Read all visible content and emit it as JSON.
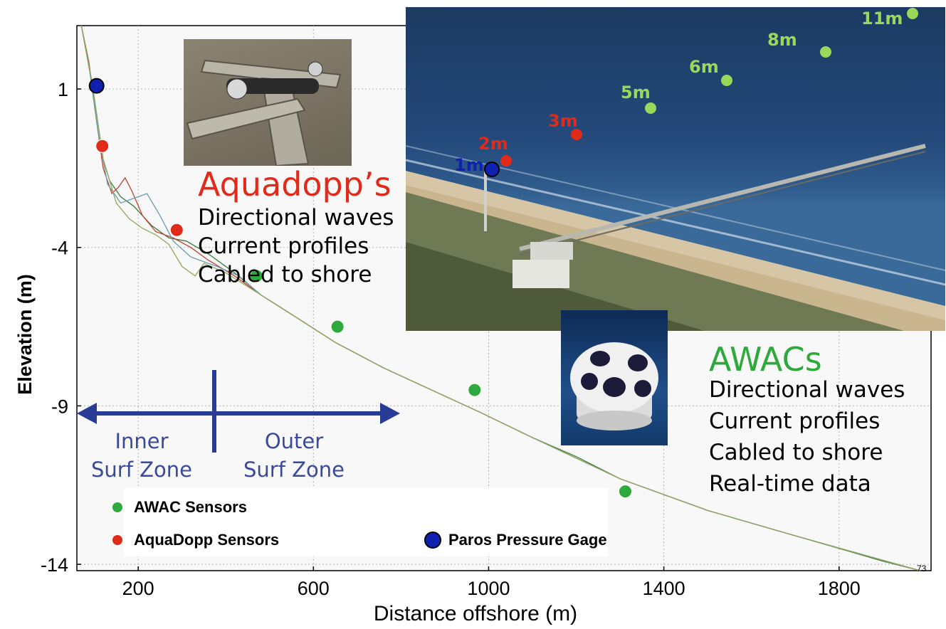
{
  "colors": {
    "awac": "#2eaa3c",
    "aquadopp": "#e02a1a",
    "paros": "#1020b0",
    "arrow": "#283c96",
    "zone_text": "#3a4a9a",
    "photo_label_green": "#9ad85a",
    "photo_label_red": "#e02a1a",
    "photo_label_blue": "#1020b0"
  },
  "chart_data": {
    "type": "line",
    "xlabel": "Distance offshore (m)",
    "ylabel": "Elevation (m)",
    "xlim": [
      60,
      2010
    ],
    "ylim": [
      -14.2,
      3
    ],
    "x_ticks": [
      200,
      600,
      1000,
      1400,
      1800
    ],
    "y_ticks": [
      1,
      -4,
      -9,
      -14
    ],
    "grid": true,
    "corner_label": "73",
    "series": [
      {
        "color": "#3c7c3c",
        "points": [
          [
            70,
            3.0
          ],
          [
            85,
            2.0
          ],
          [
            100,
            0.5
          ],
          [
            115,
            -1.0
          ],
          [
            135,
            -1.9
          ],
          [
            160,
            -2.4
          ],
          [
            190,
            -2.7
          ],
          [
            230,
            -3.3
          ],
          [
            270,
            -3.7
          ],
          [
            310,
            -3.8
          ],
          [
            360,
            -4.2
          ],
          [
            420,
            -4.8
          ],
          [
            480,
            -5.5
          ],
          [
            560,
            -6.2
          ],
          [
            650,
            -7.0
          ],
          [
            760,
            -7.8
          ],
          [
            870,
            -8.5
          ],
          [
            980,
            -9.2
          ],
          [
            1100,
            -10.0
          ],
          [
            1200,
            -10.6
          ],
          [
            1300,
            -11.3
          ],
          [
            1400,
            -11.8
          ],
          [
            1500,
            -12.3
          ],
          [
            1600,
            -12.7
          ],
          [
            1700,
            -13.1
          ],
          [
            1800,
            -13.5
          ],
          [
            1900,
            -13.9
          ],
          [
            1985,
            -14.2
          ]
        ]
      },
      {
        "color": "#c04030",
        "points": [
          [
            70,
            3.0
          ],
          [
            88,
            1.8
          ],
          [
            105,
            0.0
          ],
          [
            120,
            -1.5
          ],
          [
            140,
            -2.3
          ],
          [
            155,
            -2.1
          ],
          [
            170,
            -1.8
          ],
          [
            185,
            -2.2
          ],
          [
            210,
            -3.0
          ],
          [
            240,
            -3.5
          ],
          [
            280,
            -3.7
          ],
          [
            320,
            -4.0
          ],
          [
            360,
            -4.4
          ],
          [
            420,
            -4.9
          ],
          [
            480,
            -5.5
          ],
          [
            560,
            -6.2
          ],
          [
            650,
            -7.0
          ],
          [
            760,
            -7.8
          ],
          [
            870,
            -8.5
          ],
          [
            980,
            -9.2
          ],
          [
            1100,
            -10.0
          ],
          [
            1300,
            -11.3
          ],
          [
            1500,
            -12.3
          ],
          [
            1700,
            -13.1
          ],
          [
            1985,
            -14.2
          ]
        ]
      },
      {
        "color": "#6a9ab0",
        "points": [
          [
            70,
            3.0
          ],
          [
            90,
            1.5
          ],
          [
            110,
            -0.5
          ],
          [
            130,
            -2.0
          ],
          [
            160,
            -2.6
          ],
          [
            200,
            -2.4
          ],
          [
            220,
            -2.3
          ],
          [
            250,
            -3.0
          ],
          [
            280,
            -3.8
          ],
          [
            320,
            -4.3
          ],
          [
            380,
            -4.6
          ],
          [
            430,
            -4.9
          ],
          [
            480,
            -5.5
          ],
          [
            560,
            -6.2
          ],
          [
            650,
            -7.0
          ],
          [
            760,
            -7.8
          ],
          [
            870,
            -8.5
          ],
          [
            980,
            -9.2
          ],
          [
            1100,
            -10.0
          ],
          [
            1300,
            -11.3
          ],
          [
            1500,
            -12.3
          ],
          [
            1700,
            -13.1
          ],
          [
            1985,
            -14.2
          ]
        ]
      },
      {
        "color": "#90a860",
        "points": [
          [
            70,
            3.0
          ],
          [
            95,
            1.2
          ],
          [
            120,
            -1.2
          ],
          [
            150,
            -2.6
          ],
          [
            180,
            -3.1
          ],
          [
            210,
            -3.4
          ],
          [
            240,
            -3.6
          ],
          [
            270,
            -3.9
          ],
          [
            300,
            -4.6
          ],
          [
            330,
            -4.9
          ],
          [
            350,
            -4.5
          ],
          [
            400,
            -4.8
          ],
          [
            480,
            -5.5
          ],
          [
            560,
            -6.2
          ],
          [
            650,
            -7.0
          ],
          [
            760,
            -7.8
          ],
          [
            870,
            -8.5
          ],
          [
            980,
            -9.2
          ],
          [
            1100,
            -10.0
          ],
          [
            1300,
            -11.3
          ],
          [
            1500,
            -12.3
          ],
          [
            1700,
            -13.1
          ],
          [
            1985,
            -14.2
          ]
        ]
      }
    ],
    "sensors": [
      {
        "kind": "paros",
        "x": 105,
        "y": 1.1
      },
      {
        "kind": "aquadopp",
        "x": 118,
        "y": -0.8
      },
      {
        "kind": "aquadopp",
        "x": 288,
        "y": -3.45
      },
      {
        "kind": "awac",
        "x": 470,
        "y": -4.9
      },
      {
        "kind": "awac",
        "x": 655,
        "y": -6.5
      },
      {
        "kind": "awac",
        "x": 968,
        "y": -8.5
      },
      {
        "kind": "awac",
        "x": 1312,
        "y": -11.7
      }
    ]
  },
  "zones": {
    "inner_line1": "Inner",
    "inner_line2": "Surf Zone",
    "outer_line1": "Outer",
    "outer_line2": "Surf Zone"
  },
  "aquadopp_panel": {
    "title": "Aquadopp’s",
    "features": [
      "Directional waves",
      "Current profiles",
      "Cabled to shore"
    ]
  },
  "awac_panel": {
    "title": "AWACs",
    "features": [
      "Directional waves",
      "Current profiles",
      "Cabled to shore",
      "Real-time data"
    ]
  },
  "photo_labels": [
    {
      "text": "11m",
      "kind": "green"
    },
    {
      "text": "8m",
      "kind": "green"
    },
    {
      "text": "6m",
      "kind": "green"
    },
    {
      "text": "5m",
      "kind": "green"
    },
    {
      "text": "3m",
      "kind": "red"
    },
    {
      "text": "2m",
      "kind": "red"
    },
    {
      "text": "1m",
      "kind": "blue"
    }
  ],
  "legend": {
    "awac": "AWAC Sensors",
    "aquadopp": "AquaDopp Sensors",
    "paros": "Paros Pressure Gage"
  }
}
